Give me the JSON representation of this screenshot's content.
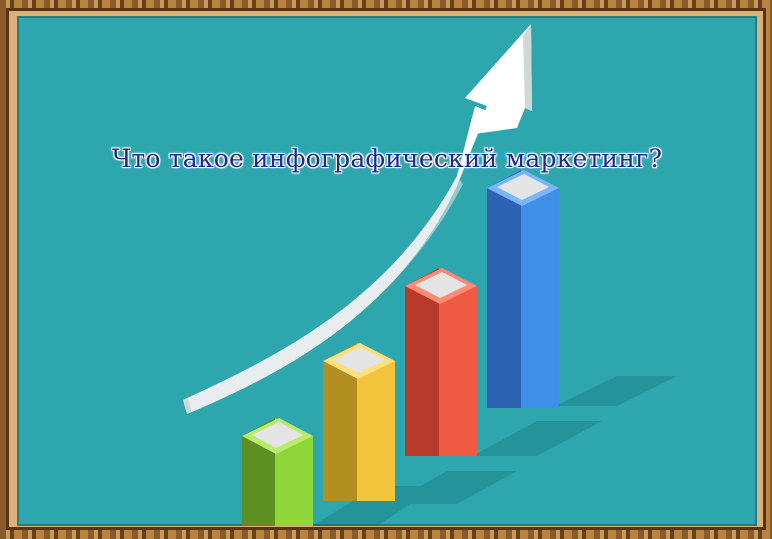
{
  "slide": {
    "title": "Что такое инфографический маркетинг?"
  },
  "colors": {
    "background": "#2ea6ad",
    "frame": "#9a6a35",
    "title_text": "#1d2a8a",
    "arrow": "#ffffff"
  },
  "illustration": {
    "bars": [
      {
        "name": "green-bar",
        "level": 0.25,
        "face": "#8fd63a",
        "side": "#5e8f22",
        "top": "#b8ec6a"
      },
      {
        "name": "yellow-bar",
        "level": 0.45,
        "face": "#f2c53d",
        "side": "#b38f22",
        "top": "#ffe07a"
      },
      {
        "name": "red-bar",
        "level": 0.65,
        "face": "#ef5a44",
        "side": "#b73a2b",
        "top": "#ff8a76"
      },
      {
        "name": "blue-bar",
        "level": 0.92,
        "face": "#3f8fe8",
        "side": "#2e62b3",
        "top": "#7ab6ff"
      }
    ],
    "arrow_icon": "growth-arrow-icon"
  }
}
